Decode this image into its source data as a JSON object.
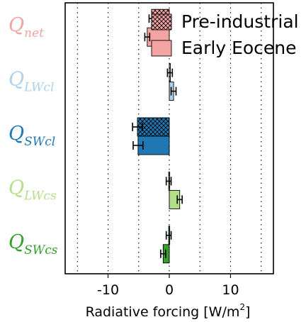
{
  "chart_data": {
    "type": "bar",
    "orientation": "horizontal",
    "xlabel": "Radiative forcing [W/m",
    "xlabel_sup": "2",
    "xlabel_end": "]",
    "xlim": [
      -17,
      17
    ],
    "xticks": [
      -10,
      0,
      10
    ],
    "xtick_labels": [
      "-10",
      "0",
      "10"
    ],
    "grid": "vertical dotted every 5",
    "legend": {
      "placement": "top-right",
      "entries": [
        {
          "name": "Pre-industrial",
          "hatch": "cross"
        },
        {
          "name": "Early Eocene",
          "hatch": "none"
        }
      ]
    },
    "categories": [
      {
        "label": "Q",
        "sub": "net",
        "color": "#f4a3a3",
        "edge": "#000000"
      },
      {
        "label": "Q",
        "sub": "LWcl",
        "color": "#aed0eb",
        "edge": "#000000"
      },
      {
        "label": "Q",
        "sub": "SWcl",
        "color": "#1f78b4",
        "edge": "#000000"
      },
      {
        "label": "Q",
        "sub": "LWcs",
        "color": "#b2df8a",
        "edge": "#000000"
      },
      {
        "label": "Q",
        "sub": "SWcs",
        "color": "#33a02c",
        "edge": "#000000"
      }
    ],
    "series": [
      {
        "name": "Pre-industrial",
        "values": [
          -2.9,
          0.1,
          -5.2,
          -0.1,
          -0.1
        ],
        "errors": [
          0.4,
          0.4,
          0.8,
          0.4,
          0.4
        ]
      },
      {
        "name": "Early Eocene",
        "values": [
          -3.6,
          0.7,
          -5.1,
          1.7,
          -1.0
        ],
        "errors": [
          0.4,
          0.4,
          0.8,
          0.4,
          0.4
        ]
      }
    ]
  }
}
